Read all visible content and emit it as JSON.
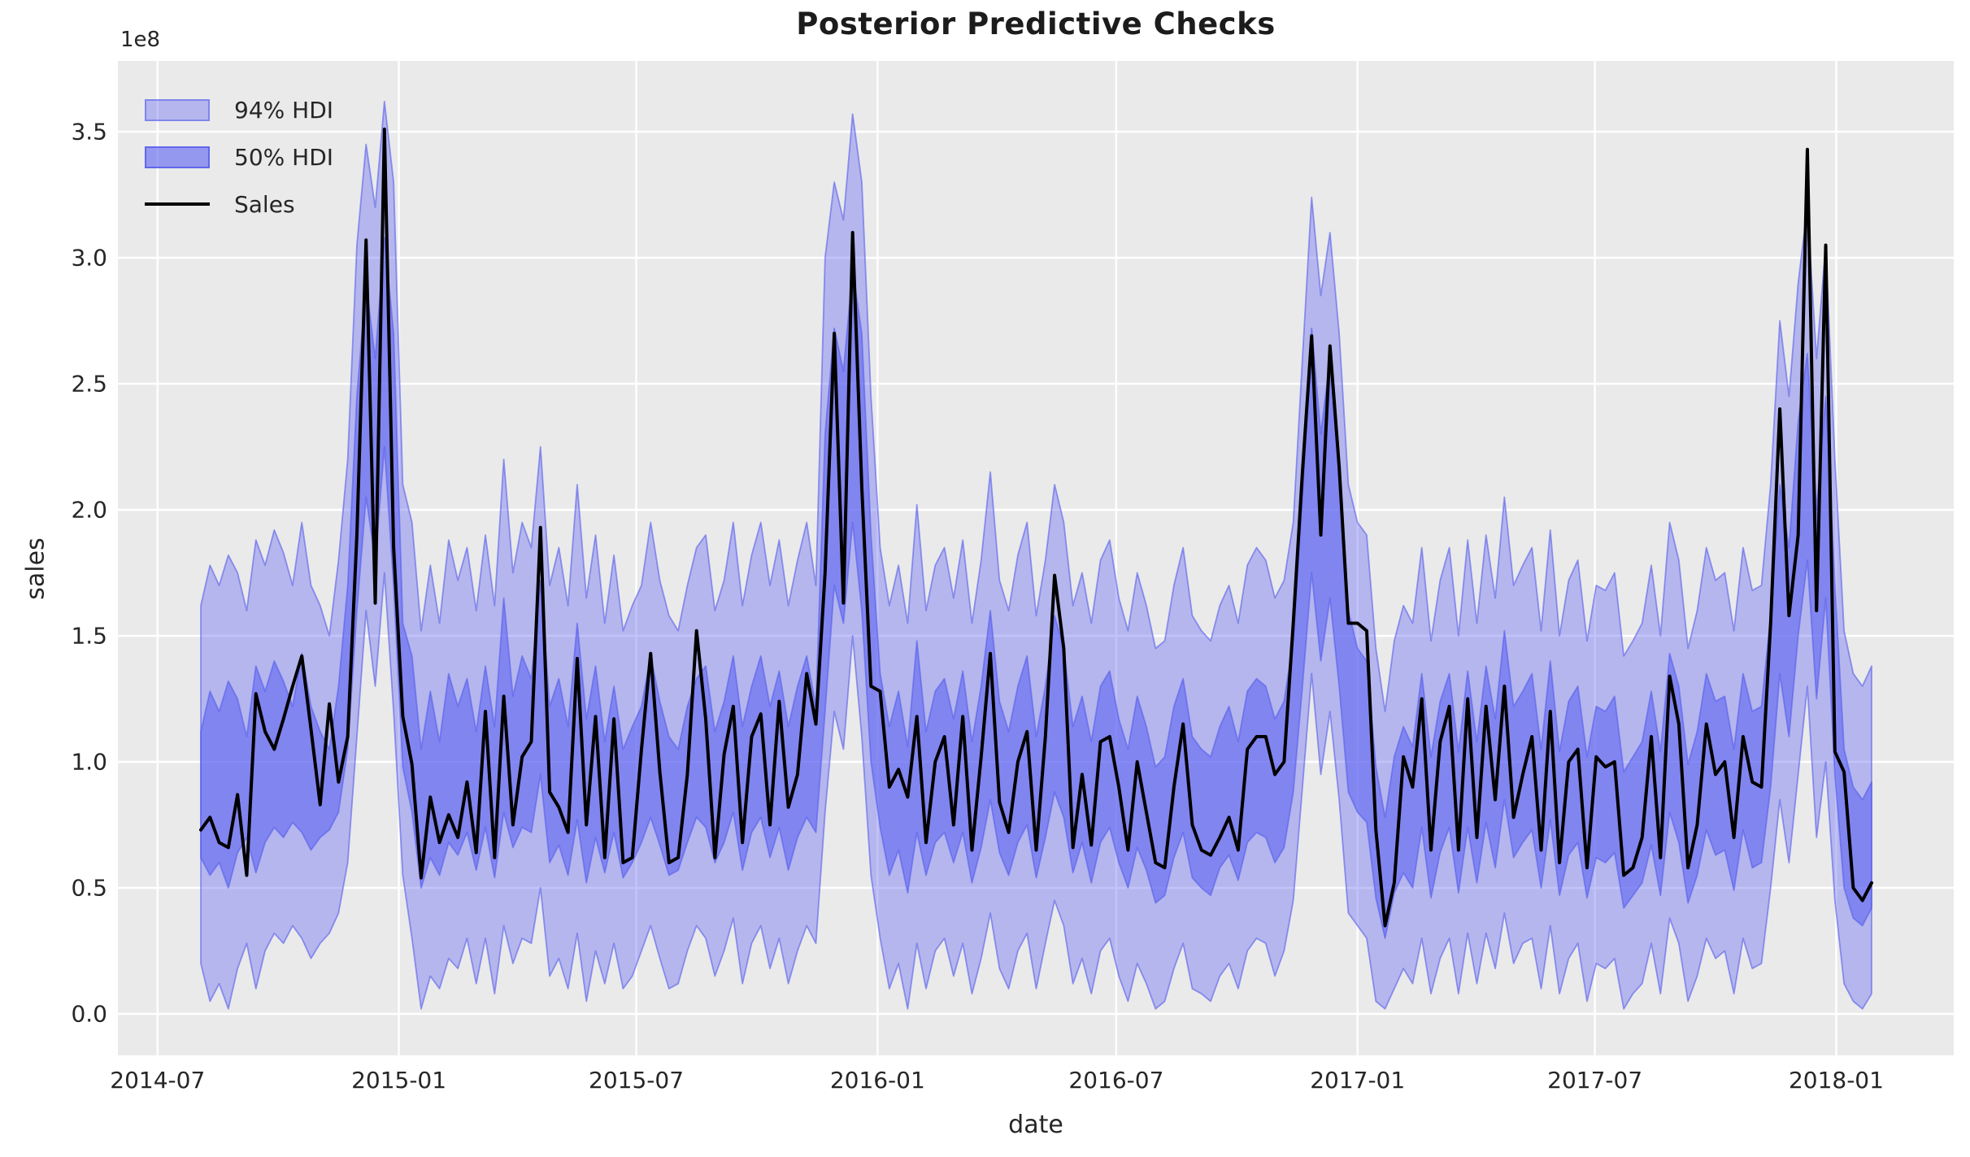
{
  "title": "Posterior Predictive Checks",
  "axes": {
    "xlabel": "date",
    "ylabel": "sales",
    "offset_text": "1e8",
    "xtick_labels": [
      "2014-07",
      "2015-01",
      "2015-07",
      "2016-01",
      "2016-07",
      "2017-01",
      "2017-07",
      "2018-01"
    ],
    "xtick_dates": [
      "2014-07-01",
      "2015-01-01",
      "2015-07-01",
      "2016-01-01",
      "2016-07-01",
      "2017-01-01",
      "2017-07-01",
      "2018-01-01"
    ],
    "ytick_labels": [
      "0.0",
      "0.5",
      "1.0",
      "1.5",
      "2.0",
      "2.5",
      "3.0",
      "3.5"
    ],
    "ytick_values": [
      0.0,
      0.5,
      1.0,
      1.5,
      2.0,
      2.5,
      3.0,
      3.5
    ]
  },
  "legend": {
    "entries": [
      {
        "label": "94% HDI",
        "type": "band",
        "color": "#b4b6ee"
      },
      {
        "label": "50% HDI",
        "type": "band",
        "color": "#8286e7"
      },
      {
        "label": "Sales",
        "type": "line",
        "color": "#000000"
      }
    ]
  },
  "colors": {
    "figure_background": "#ffffff",
    "plot_background": "#eaeaea",
    "grid": "#ffffff",
    "band_base": "#6369f2",
    "hdi94_fill": "rgba(99,105,242,0.40)",
    "hdi50_fill": "rgba(99,105,242,0.63)",
    "band_edge": "rgba(85,92,235,0.60)",
    "sales_line": "#000000",
    "text": "#262626"
  },
  "chart_data": {
    "type": "line",
    "title": "Posterior Predictive Checks",
    "xlabel": "date",
    "ylabel": "sales",
    "y_unit_multiplier": "1e8",
    "ylim": [
      -0.165,
      3.78
    ],
    "xlim": [
      "2014-05-31",
      "2018-04-02"
    ],
    "grid": true,
    "legend_position": "upper left",
    "x_start_date": "2014-08-03",
    "x_interval_days": 7,
    "n_points": 183,
    "series": [
      {
        "name": "Sales",
        "values": [
          0.73,
          0.78,
          0.68,
          0.66,
          0.87,
          0.55,
          1.27,
          1.12,
          1.05,
          1.17,
          1.3,
          1.42,
          1.13,
          0.83,
          1.23,
          0.92,
          1.1,
          1.9,
          3.07,
          1.63,
          3.51,
          1.85,
          1.18,
          0.99,
          0.54,
          0.86,
          0.68,
          0.79,
          0.7,
          0.92,
          0.64,
          1.2,
          0.62,
          1.26,
          0.75,
          1.02,
          1.08,
          1.93,
          0.88,
          0.82,
          0.72,
          1.41,
          0.75,
          1.18,
          0.62,
          1.17,
          0.6,
          0.62,
          1.05,
          1.43,
          0.96,
          0.6,
          0.62,
          0.95,
          1.52,
          1.17,
          0.62,
          1.03,
          1.22,
          0.68,
          1.1,
          1.19,
          0.75,
          1.24,
          0.82,
          0.95,
          1.35,
          1.15,
          1.75,
          2.7,
          1.63,
          3.1,
          2.09,
          1.3,
          1.28,
          0.9,
          0.97,
          0.86,
          1.18,
          0.68,
          1.0,
          1.1,
          0.75,
          1.18,
          0.65,
          1.02,
          1.43,
          0.84,
          0.72,
          1.0,
          1.12,
          0.65,
          1.1,
          1.74,
          1.45,
          0.66,
          0.95,
          0.67,
          1.08,
          1.1,
          0.9,
          0.65,
          1.0,
          0.8,
          0.6,
          0.58,
          0.9,
          1.15,
          0.75,
          0.65,
          0.63,
          0.7,
          0.78,
          0.65,
          1.05,
          1.1,
          1.1,
          0.95,
          1.0,
          1.55,
          2.15,
          2.69,
          1.9,
          2.65,
          2.17,
          1.55,
          1.55,
          1.52,
          0.73,
          0.35,
          0.52,
          1.02,
          0.9,
          1.25,
          0.65,
          1.08,
          1.22,
          0.65,
          1.25,
          0.7,
          1.22,
          0.85,
          1.3,
          0.78,
          0.95,
          1.1,
          0.65,
          1.2,
          0.6,
          1.0,
          1.05,
          0.58,
          1.02,
          0.98,
          1.0,
          0.55,
          0.58,
          0.7,
          1.1,
          0.62,
          1.34,
          1.15,
          0.58,
          0.75,
          1.15,
          0.95,
          1.0,
          0.7,
          1.1,
          0.92,
          0.9,
          1.55,
          2.4,
          1.58,
          1.9,
          3.43,
          1.6,
          3.05,
          1.04,
          0.96,
          0.5,
          0.45,
          0.52
        ]
      },
      {
        "name": "94% HDI upper",
        "values": [
          1.62,
          1.78,
          1.7,
          1.82,
          1.75,
          1.6,
          1.88,
          1.78,
          1.92,
          1.83,
          1.7,
          1.95,
          1.7,
          1.62,
          1.5,
          1.8,
          2.2,
          3.05,
          3.45,
          3.2,
          3.62,
          3.3,
          2.1,
          1.95,
          1.52,
          1.78,
          1.55,
          1.88,
          1.72,
          1.85,
          1.6,
          1.9,
          1.62,
          2.2,
          1.75,
          1.95,
          1.85,
          2.25,
          1.7,
          1.85,
          1.62,
          2.1,
          1.65,
          1.9,
          1.55,
          1.82,
          1.52,
          1.62,
          1.7,
          1.95,
          1.72,
          1.58,
          1.52,
          1.7,
          1.85,
          1.9,
          1.6,
          1.72,
          1.95,
          1.62,
          1.82,
          1.95,
          1.7,
          1.88,
          1.62,
          1.8,
          1.95,
          1.7,
          3.0,
          3.3,
          3.15,
          3.57,
          3.3,
          2.45,
          1.85,
          1.62,
          1.78,
          1.55,
          2.02,
          1.6,
          1.78,
          1.85,
          1.65,
          1.88,
          1.55,
          1.8,
          2.15,
          1.72,
          1.6,
          1.82,
          1.95,
          1.58,
          1.8,
          2.1,
          1.95,
          1.62,
          1.75,
          1.55,
          1.8,
          1.88,
          1.65,
          1.52,
          1.75,
          1.62,
          1.45,
          1.48,
          1.7,
          1.85,
          1.58,
          1.52,
          1.48,
          1.62,
          1.7,
          1.55,
          1.78,
          1.85,
          1.8,
          1.65,
          1.72,
          1.95,
          2.6,
          3.24,
          2.85,
          3.1,
          2.7,
          2.1,
          1.95,
          1.9,
          1.45,
          1.2,
          1.48,
          1.62,
          1.55,
          1.85,
          1.48,
          1.72,
          1.85,
          1.5,
          1.88,
          1.55,
          1.9,
          1.65,
          2.05,
          1.7,
          1.78,
          1.85,
          1.52,
          1.92,
          1.5,
          1.72,
          1.8,
          1.48,
          1.7,
          1.68,
          1.75,
          1.42,
          1.48,
          1.55,
          1.78,
          1.5,
          1.95,
          1.8,
          1.45,
          1.6,
          1.85,
          1.72,
          1.75,
          1.52,
          1.85,
          1.68,
          1.7,
          2.1,
          2.75,
          2.45,
          2.9,
          3.2,
          2.6,
          3.05,
          2.2,
          1.52,
          1.35,
          1.3,
          1.38
        ]
      },
      {
        "name": "94% HDI lower",
        "values": [
          0.2,
          0.05,
          0.12,
          0.02,
          0.18,
          0.28,
          0.1,
          0.25,
          0.32,
          0.28,
          0.35,
          0.3,
          0.22,
          0.28,
          0.32,
          0.4,
          0.6,
          1.1,
          1.6,
          1.3,
          1.75,
          1.2,
          0.55,
          0.3,
          0.02,
          0.15,
          0.1,
          0.22,
          0.18,
          0.3,
          0.12,
          0.3,
          0.08,
          0.35,
          0.2,
          0.3,
          0.28,
          0.5,
          0.15,
          0.22,
          0.1,
          0.32,
          0.05,
          0.25,
          0.12,
          0.28,
          0.1,
          0.15,
          0.25,
          0.35,
          0.22,
          0.1,
          0.12,
          0.25,
          0.35,
          0.3,
          0.15,
          0.25,
          0.38,
          0.12,
          0.28,
          0.35,
          0.18,
          0.3,
          0.12,
          0.25,
          0.35,
          0.28,
          0.8,
          1.2,
          1.05,
          1.5,
          1.1,
          0.55,
          0.3,
          0.1,
          0.2,
          0.02,
          0.28,
          0.1,
          0.25,
          0.3,
          0.15,
          0.28,
          0.08,
          0.22,
          0.4,
          0.18,
          0.1,
          0.25,
          0.32,
          0.1,
          0.28,
          0.45,
          0.35,
          0.12,
          0.22,
          0.08,
          0.25,
          0.3,
          0.15,
          0.05,
          0.2,
          0.12,
          0.02,
          0.05,
          0.18,
          0.28,
          0.1,
          0.08,
          0.05,
          0.15,
          0.2,
          0.1,
          0.25,
          0.3,
          0.28,
          0.15,
          0.25,
          0.45,
          0.9,
          1.35,
          0.95,
          1.2,
          0.85,
          0.4,
          0.35,
          0.3,
          0.05,
          0.02,
          0.1,
          0.18,
          0.12,
          0.3,
          0.08,
          0.22,
          0.3,
          0.08,
          0.32,
          0.12,
          0.32,
          0.18,
          0.4,
          0.2,
          0.28,
          0.3,
          0.1,
          0.35,
          0.08,
          0.22,
          0.28,
          0.05,
          0.2,
          0.18,
          0.22,
          0.02,
          0.08,
          0.12,
          0.28,
          0.08,
          0.38,
          0.28,
          0.05,
          0.15,
          0.3,
          0.22,
          0.25,
          0.08,
          0.3,
          0.18,
          0.2,
          0.5,
          0.85,
          0.6,
          0.95,
          1.3,
          0.7,
          1.0,
          0.45,
          0.12,
          0.05,
          0.02,
          0.08
        ]
      },
      {
        "name": "50% HDI upper",
        "values": [
          1.12,
          1.28,
          1.2,
          1.32,
          1.25,
          1.1,
          1.38,
          1.28,
          1.4,
          1.32,
          1.22,
          1.43,
          1.22,
          1.12,
          1.05,
          1.3,
          1.7,
          2.45,
          2.9,
          2.6,
          3.08,
          2.7,
          1.55,
          1.42,
          1.05,
          1.28,
          1.08,
          1.35,
          1.22,
          1.33,
          1.12,
          1.38,
          1.14,
          1.65,
          1.26,
          1.42,
          1.33,
          1.72,
          1.22,
          1.33,
          1.14,
          1.55,
          1.17,
          1.38,
          1.08,
          1.3,
          1.05,
          1.14,
          1.22,
          1.42,
          1.24,
          1.1,
          1.05,
          1.22,
          1.33,
          1.38,
          1.12,
          1.24,
          1.42,
          1.14,
          1.3,
          1.42,
          1.22,
          1.36,
          1.14,
          1.3,
          1.42,
          1.22,
          2.3,
          2.72,
          2.55,
          2.95,
          2.7,
          1.9,
          1.35,
          1.14,
          1.28,
          1.06,
          1.48,
          1.12,
          1.28,
          1.33,
          1.17,
          1.36,
          1.08,
          1.3,
          1.6,
          1.24,
          1.12,
          1.3,
          1.42,
          1.1,
          1.3,
          1.58,
          1.45,
          1.14,
          1.26,
          1.08,
          1.3,
          1.36,
          1.17,
          1.05,
          1.26,
          1.14,
          0.98,
          1.02,
          1.22,
          1.33,
          1.1,
          1.05,
          1.02,
          1.14,
          1.22,
          1.08,
          1.28,
          1.33,
          1.3,
          1.17,
          1.24,
          1.48,
          2.05,
          2.72,
          2.3,
          2.6,
          2.2,
          1.6,
          1.45,
          1.4,
          0.98,
          0.78,
          1.02,
          1.14,
          1.06,
          1.35,
          1.02,
          1.24,
          1.35,
          1.04,
          1.36,
          1.08,
          1.38,
          1.17,
          1.52,
          1.22,
          1.28,
          1.35,
          1.05,
          1.4,
          1.04,
          1.24,
          1.3,
          1.02,
          1.22,
          1.2,
          1.26,
          0.96,
          1.02,
          1.08,
          1.28,
          1.04,
          1.43,
          1.3,
          0.99,
          1.12,
          1.35,
          1.24,
          1.26,
          1.05,
          1.35,
          1.2,
          1.22,
          1.58,
          2.1,
          1.85,
          2.35,
          2.62,
          2.0,
          2.45,
          1.7,
          1.05,
          0.9,
          0.85,
          0.92
        ]
      },
      {
        "name": "50% HDI lower",
        "values": [
          0.62,
          0.55,
          0.6,
          0.5,
          0.64,
          0.7,
          0.56,
          0.68,
          0.74,
          0.7,
          0.76,
          0.72,
          0.65,
          0.7,
          0.73,
          0.8,
          1.05,
          1.6,
          2.05,
          1.8,
          2.25,
          1.7,
          0.98,
          0.8,
          0.5,
          0.62,
          0.55,
          0.68,
          0.63,
          0.72,
          0.57,
          0.74,
          0.54,
          0.8,
          0.66,
          0.74,
          0.72,
          0.95,
          0.6,
          0.67,
          0.55,
          0.77,
          0.52,
          0.7,
          0.56,
          0.72,
          0.54,
          0.6,
          0.68,
          0.78,
          0.67,
          0.55,
          0.57,
          0.68,
          0.78,
          0.74,
          0.6,
          0.68,
          0.8,
          0.57,
          0.72,
          0.78,
          0.62,
          0.74,
          0.57,
          0.7,
          0.78,
          0.72,
          1.2,
          1.7,
          1.55,
          1.95,
          1.6,
          1.0,
          0.74,
          0.55,
          0.65,
          0.48,
          0.72,
          0.55,
          0.68,
          0.72,
          0.6,
          0.72,
          0.52,
          0.66,
          0.85,
          0.64,
          0.55,
          0.68,
          0.75,
          0.54,
          0.7,
          0.88,
          0.78,
          0.56,
          0.68,
          0.52,
          0.68,
          0.74,
          0.6,
          0.5,
          0.66,
          0.57,
          0.44,
          0.47,
          0.62,
          0.72,
          0.54,
          0.5,
          0.47,
          0.58,
          0.63,
          0.53,
          0.68,
          0.72,
          0.7,
          0.6,
          0.66,
          0.88,
          1.3,
          1.75,
          1.4,
          1.65,
          1.3,
          0.88,
          0.8,
          0.76,
          0.46,
          0.3,
          0.48,
          0.56,
          0.5,
          0.74,
          0.46,
          0.64,
          0.74,
          0.48,
          0.74,
          0.52,
          0.76,
          0.58,
          0.85,
          0.62,
          0.68,
          0.73,
          0.5,
          0.77,
          0.47,
          0.63,
          0.68,
          0.46,
          0.62,
          0.6,
          0.64,
          0.42,
          0.47,
          0.52,
          0.67,
          0.47,
          0.8,
          0.68,
          0.44,
          0.55,
          0.73,
          0.63,
          0.65,
          0.49,
          0.73,
          0.58,
          0.6,
          0.9,
          1.35,
          1.1,
          1.5,
          1.8,
          1.25,
          1.65,
          0.95,
          0.5,
          0.38,
          0.35,
          0.42
        ]
      }
    ]
  }
}
